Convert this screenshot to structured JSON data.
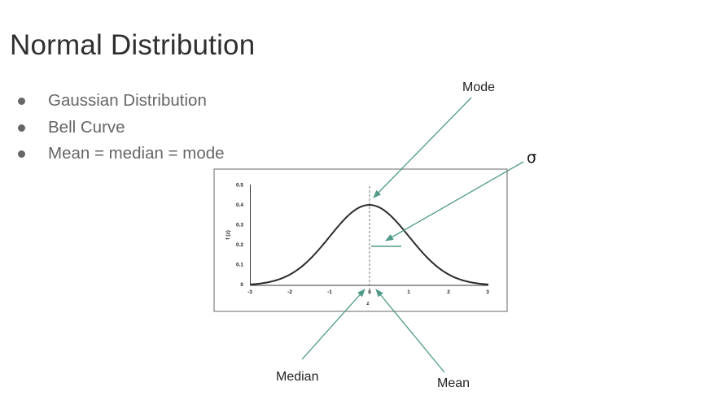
{
  "slide": {
    "title": "Normal Distribution",
    "bullets": [
      {
        "text": "Gaussian Distribution"
      },
      {
        "text": "Bell Curve"
      },
      {
        "text": "Mean = median = mode"
      }
    ]
  },
  "figure": {
    "y_axis_label": "f (z)",
    "x_axis_label": "z",
    "y_ticks": [
      "0.5",
      "0.4",
      "0.3",
      "0.2",
      "0.1",
      "0"
    ],
    "x_ticks": [
      "-3",
      "-2",
      "-1",
      "0",
      "1",
      "2",
      "3"
    ],
    "mean": 0,
    "sigma": 1,
    "x_range": [
      -3,
      3
    ],
    "y_range": [
      0,
      0.5
    ],
    "curve_color": "#2b2b2b",
    "annotation_color": "#4e9a86",
    "frame_color": "#8a8a8a",
    "callouts": {
      "mode": "Mode",
      "sigma": "σ",
      "median": "Median",
      "mean": "Mean"
    }
  }
}
